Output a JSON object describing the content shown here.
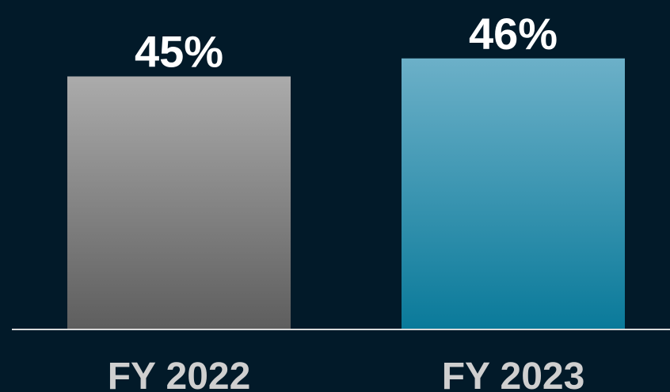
{
  "chart_data": {
    "type": "bar",
    "categories": [
      "FY 2022",
      "FY 2023"
    ],
    "values": [
      45,
      46
    ],
    "value_labels": [
      "45%",
      "46%"
    ],
    "gradients": [
      [
        "#ababab",
        "#5e5e5e"
      ],
      [
        "#6cb0c8",
        "#0a7a9a"
      ]
    ],
    "ylim": [
      31,
      47
    ]
  }
}
